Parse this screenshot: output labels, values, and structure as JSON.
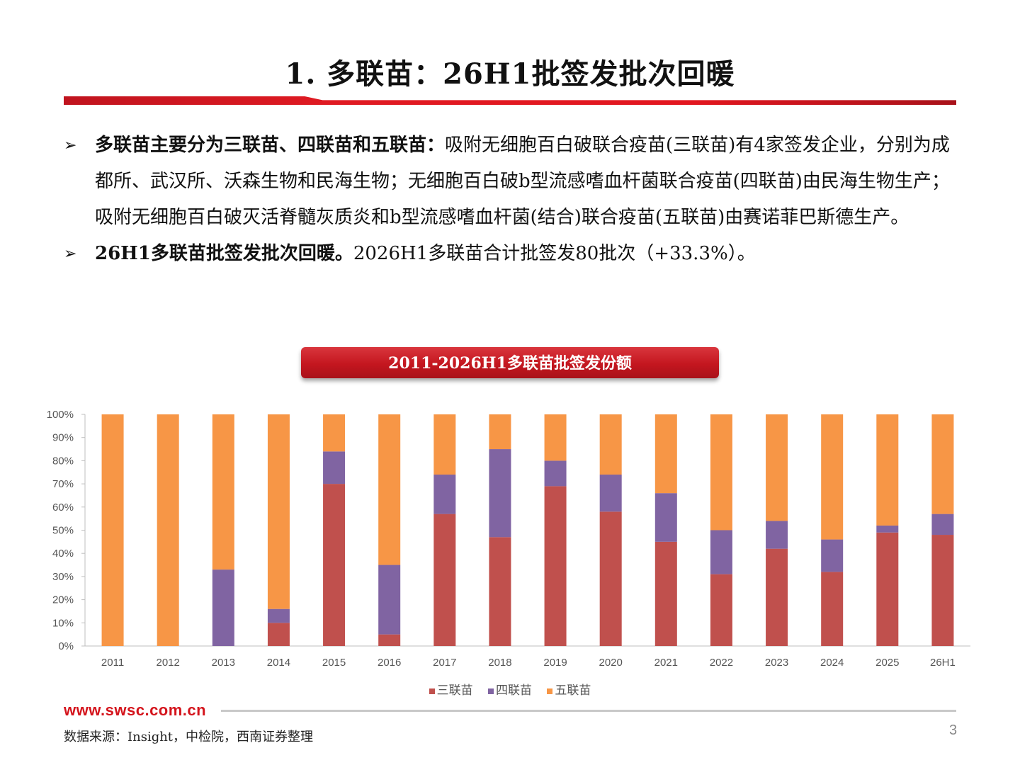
{
  "slide": {
    "title": "1. 多联苗：26H1批签发批次回暖",
    "bullets": [
      {
        "arrow": "➢",
        "bold": "多联苗主要分为三联苗、四联苗和五联苗：",
        "text": "吸附无细胞百白破联合疫苗(三联苗)有4家签发企业，分别为成都所、武汉所、沃森生物和民海生物；无细胞百白破b型流感嗜血杆菌联合疫苗(四联苗)由民海生物生产；吸附无细胞百白破灭活脊髓灰质炎和b型流感嗜血杆菌(结合)联合疫苗(五联苗)由赛诺菲巴斯德生产。"
      },
      {
        "arrow": "➢",
        "bold": "26H1多联苗批签发批次回暖。",
        "text": "2026H1多联苗合计批签发80批次（+33.3%）。"
      }
    ],
    "footer_url": "www.swsc.com.cn",
    "source": "数据来源：Insight，中检院，西南证券整理",
    "page_number": "3"
  },
  "chart_data": {
    "type": "bar",
    "stacked": true,
    "title": "2011-2026H1多联苗批签发份额",
    "categories": [
      "2011",
      "2012",
      "2013",
      "2014",
      "2015",
      "2016",
      "2017",
      "2018",
      "2019",
      "2020",
      "2021",
      "2022",
      "2023",
      "2024",
      "2025",
      "26H1"
    ],
    "series": [
      {
        "name": "三联苗",
        "color": "#c0504d",
        "values": [
          0,
          0,
          0,
          10,
          70,
          5,
          57,
          47,
          69,
          58,
          45,
          31,
          42,
          32,
          49,
          48
        ]
      },
      {
        "name": "四联苗",
        "color": "#8064a2",
        "values": [
          0,
          0,
          33,
          6,
          14,
          30,
          17,
          38,
          11,
          16,
          21,
          19,
          12,
          14,
          3,
          9
        ]
      },
      {
        "name": "五联苗",
        "color": "#f79646",
        "values": [
          100,
          100,
          67,
          84,
          16,
          65,
          26,
          15,
          20,
          26,
          34,
          50,
          46,
          54,
          48,
          43
        ]
      }
    ],
    "ylim": [
      0,
      100
    ],
    "yticks": [
      "0%",
      "10%",
      "20%",
      "30%",
      "40%",
      "50%",
      "60%",
      "70%",
      "80%",
      "90%",
      "100%"
    ],
    "legend_position": "bottom",
    "grid": false
  }
}
